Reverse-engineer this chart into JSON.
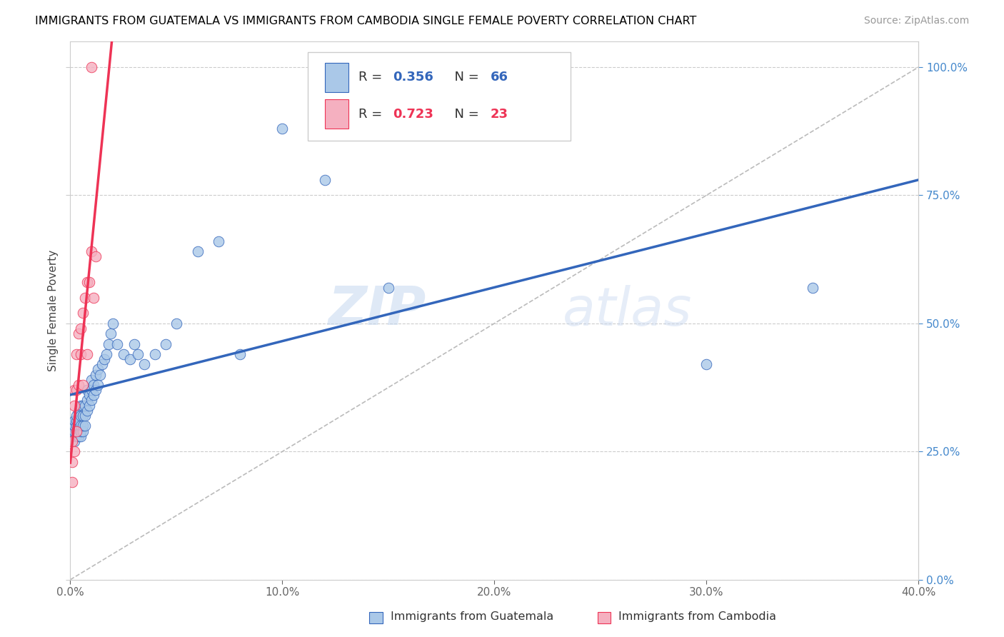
{
  "title": "IMMIGRANTS FROM GUATEMALA VS IMMIGRANTS FROM CAMBODIA SINGLE FEMALE POVERTY CORRELATION CHART",
  "source": "Source: ZipAtlas.com",
  "ylabel": "Single Female Poverty",
  "legend_labels": [
    "Immigrants from Guatemala",
    "Immigrants from Cambodia"
  ],
  "R_guatemala": 0.356,
  "N_guatemala": 66,
  "R_cambodia": 0.723,
  "N_cambodia": 23,
  "color_guatemala": "#aac8e8",
  "color_cambodia": "#f5b0c0",
  "line_color_guatemala": "#3366bb",
  "line_color_cambodia": "#ee3355",
  "watermark_zip": "ZIP",
  "watermark_atlas": "atlas",
  "xmin": 0.0,
  "xmax": 0.4,
  "ymin": 0.0,
  "ymax": 1.05,
  "yticks": [
    0.0,
    0.25,
    0.5,
    0.75,
    1.0
  ],
  "xticks": [
    0.0,
    0.1,
    0.2,
    0.3,
    0.4
  ],
  "guatemala_x": [
    0.001,
    0.001,
    0.001,
    0.002,
    0.002,
    0.002,
    0.002,
    0.003,
    0.003,
    0.003,
    0.003,
    0.003,
    0.004,
    0.004,
    0.004,
    0.004,
    0.005,
    0.005,
    0.005,
    0.005,
    0.005,
    0.006,
    0.006,
    0.006,
    0.006,
    0.007,
    0.007,
    0.007,
    0.008,
    0.008,
    0.008,
    0.009,
    0.009,
    0.01,
    0.01,
    0.01,
    0.011,
    0.011,
    0.012,
    0.012,
    0.013,
    0.013,
    0.014,
    0.015,
    0.016,
    0.017,
    0.018,
    0.019,
    0.02,
    0.022,
    0.025,
    0.028,
    0.03,
    0.032,
    0.035,
    0.04,
    0.045,
    0.05,
    0.06,
    0.07,
    0.08,
    0.1,
    0.12,
    0.15,
    0.3,
    0.35
  ],
  "guatemala_y": [
    0.28,
    0.29,
    0.3,
    0.27,
    0.29,
    0.3,
    0.31,
    0.28,
    0.29,
    0.3,
    0.31,
    0.32,
    0.28,
    0.3,
    0.31,
    0.33,
    0.28,
    0.29,
    0.3,
    0.32,
    0.34,
    0.29,
    0.3,
    0.32,
    0.34,
    0.3,
    0.32,
    0.34,
    0.33,
    0.35,
    0.37,
    0.34,
    0.36,
    0.35,
    0.37,
    0.39,
    0.36,
    0.38,
    0.37,
    0.4,
    0.38,
    0.41,
    0.4,
    0.42,
    0.43,
    0.44,
    0.46,
    0.48,
    0.5,
    0.46,
    0.44,
    0.43,
    0.46,
    0.44,
    0.42,
    0.44,
    0.46,
    0.5,
    0.64,
    0.66,
    0.44,
    0.88,
    0.78,
    0.57,
    0.42,
    0.57
  ],
  "cambodia_x": [
    0.001,
    0.001,
    0.001,
    0.002,
    0.002,
    0.002,
    0.003,
    0.003,
    0.003,
    0.004,
    0.004,
    0.005,
    0.005,
    0.006,
    0.006,
    0.007,
    0.008,
    0.008,
    0.009,
    0.01,
    0.01,
    0.011,
    0.012
  ],
  "cambodia_y": [
    0.19,
    0.23,
    0.27,
    0.25,
    0.34,
    0.37,
    0.29,
    0.37,
    0.44,
    0.38,
    0.48,
    0.44,
    0.49,
    0.38,
    0.52,
    0.55,
    0.58,
    0.44,
    0.58,
    0.64,
    1.0,
    0.55,
    0.63
  ]
}
